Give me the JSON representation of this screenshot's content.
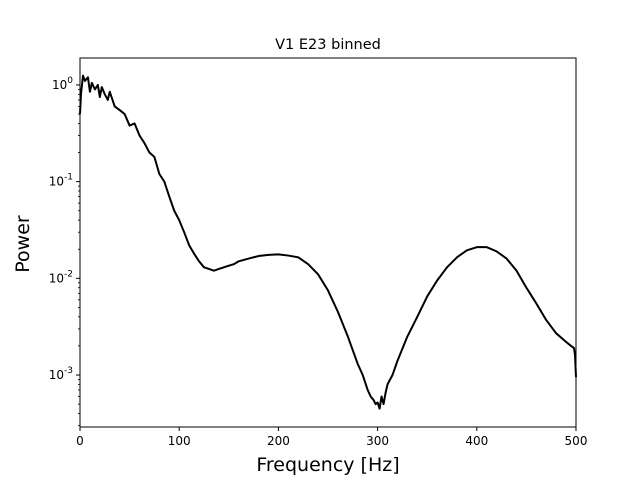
{
  "chart_data": {
    "type": "line",
    "title": "V1 E23 binned",
    "xlabel": "Frequency [Hz]",
    "ylabel": "Power",
    "xlim": [
      0,
      500
    ],
    "ylim": [
      0.00029,
      1.9
    ],
    "yscale": "log",
    "grid": false,
    "x_ticks": [
      0,
      100,
      200,
      300,
      400,
      500
    ],
    "y_ticks": [
      0.001,
      0.01,
      0.1,
      1
    ],
    "y_tick_labels": [
      "10^-3",
      "10^-2",
      "10^-1",
      "10^0"
    ],
    "series": [
      {
        "color": "#000000",
        "x": [
          0,
          1,
          2,
          3,
          5,
          8,
          10,
          12,
          15,
          18,
          20,
          22,
          25,
          28,
          30,
          35,
          40,
          45,
          50,
          55,
          60,
          65,
          70,
          75,
          80,
          85,
          90,
          95,
          100,
          105,
          110,
          115,
          120,
          125,
          130,
          135,
          140,
          145,
          150,
          155,
          160,
          170,
          180,
          190,
          200,
          210,
          220,
          230,
          240,
          250,
          260,
          270,
          280,
          285,
          290,
          293,
          296,
          298,
          300,
          302,
          304,
          306,
          308,
          310,
          315,
          320,
          330,
          340,
          350,
          360,
          370,
          380,
          390,
          400,
          410,
          420,
          430,
          440,
          450,
          460,
          470,
          480,
          490,
          495,
          498,
          499,
          500
        ],
        "y": [
          0.5,
          0.8,
          1.0,
          1.25,
          1.1,
          1.2,
          0.85,
          1.05,
          0.9,
          1.0,
          0.75,
          0.95,
          0.8,
          0.7,
          0.85,
          0.6,
          0.55,
          0.5,
          0.38,
          0.4,
          0.3,
          0.25,
          0.2,
          0.18,
          0.12,
          0.1,
          0.07,
          0.05,
          0.04,
          0.03,
          0.022,
          0.018,
          0.015,
          0.013,
          0.0125,
          0.012,
          0.0125,
          0.013,
          0.0135,
          0.014,
          0.015,
          0.016,
          0.017,
          0.0175,
          0.0177,
          0.0172,
          0.0165,
          0.014,
          0.011,
          0.0075,
          0.0045,
          0.0025,
          0.0013,
          0.001,
          0.0007,
          0.0006,
          0.00055,
          0.0005,
          0.00052,
          0.00045,
          0.0006,
          0.0005,
          0.00065,
          0.0008,
          0.001,
          0.0014,
          0.0025,
          0.004,
          0.0065,
          0.0095,
          0.013,
          0.0165,
          0.0195,
          0.021,
          0.021,
          0.019,
          0.016,
          0.012,
          0.008,
          0.0055,
          0.0037,
          0.0027,
          0.0022,
          0.002,
          0.0019,
          0.0016,
          0.00095
        ]
      }
    ]
  }
}
